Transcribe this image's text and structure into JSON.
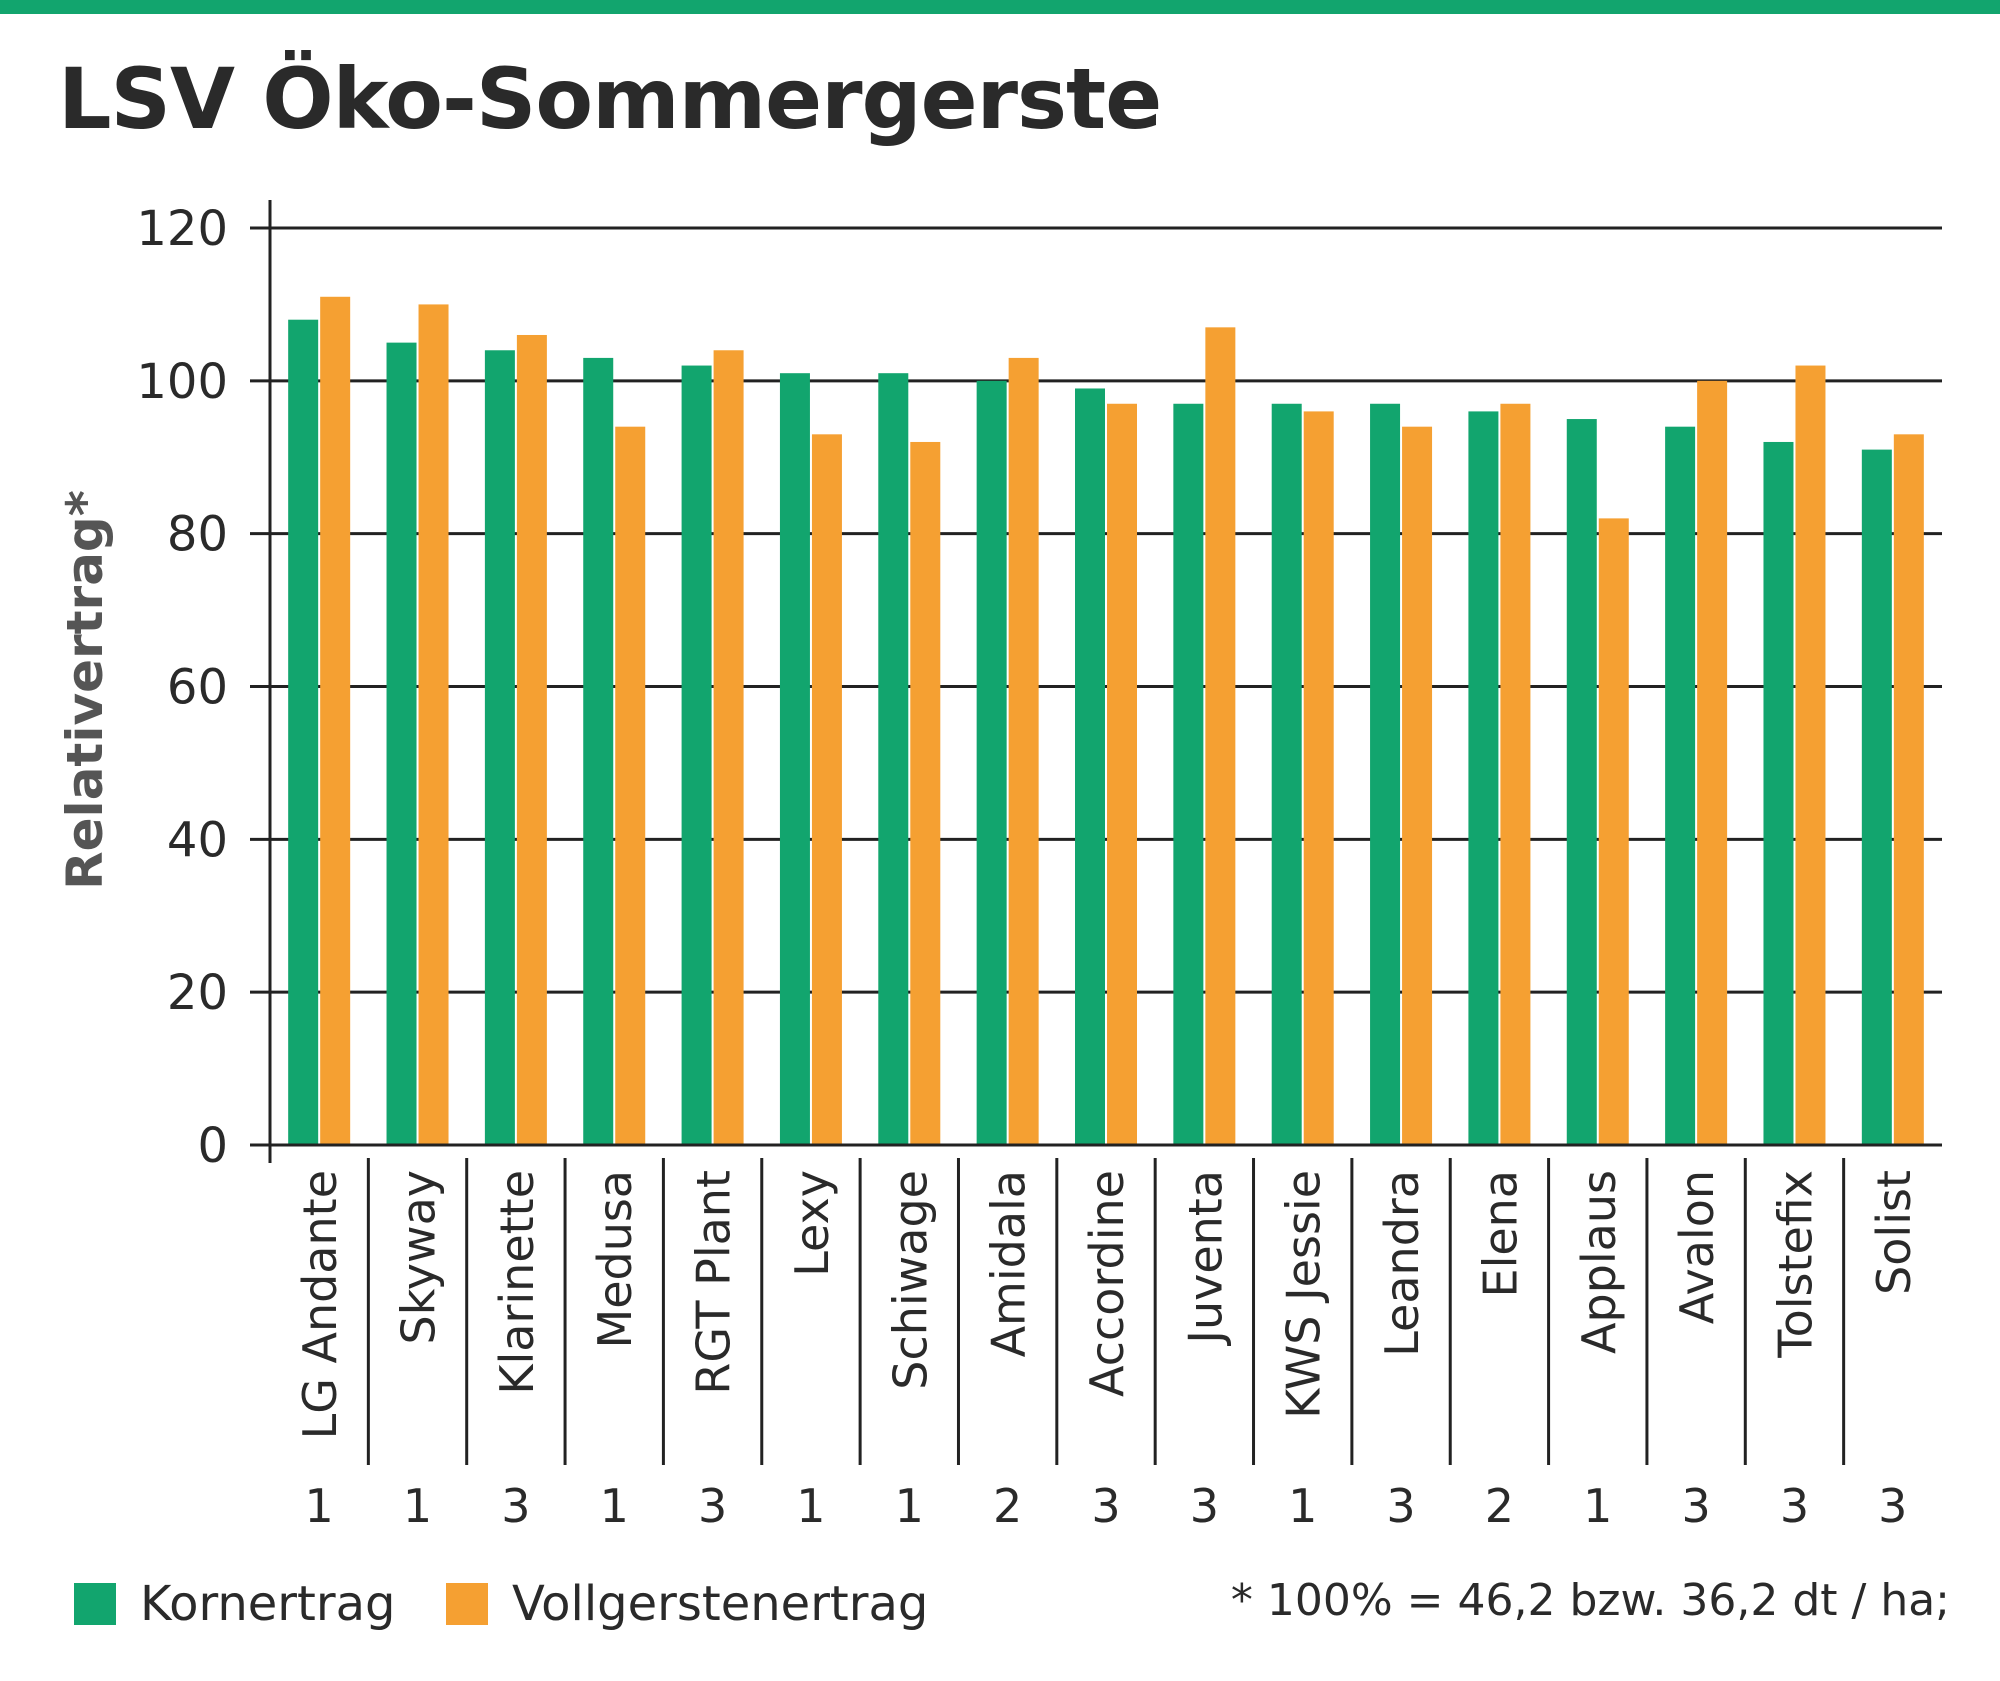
{
  "title": "LSV Öko-Sommergerste",
  "colors": {
    "accent": "#12a56e",
    "korn": "#12a56e",
    "voll": "#f5a032",
    "axis": "#222222"
  },
  "legend": {
    "korn_label": "Kornertrag",
    "voll_label": "Vollgerstenertrag"
  },
  "footnote": "* 100% = 46,2 bzw. 36,2 dt / ha;",
  "chart_data": {
    "type": "bar",
    "ylabel": "Relativertrag*",
    "ylim": [
      0,
      120
    ],
    "yticks": [
      0,
      20,
      40,
      60,
      80,
      100,
      120
    ],
    "grid": true,
    "categories": [
      "LG Andante",
      "Skyway",
      "Klarinette",
      "Medusa",
      "RGT Plant",
      "Lexy",
      "Schiwage",
      "Amidala",
      "Accordine",
      "Juventa",
      "KWS Jessie",
      "Leandra",
      "Elena",
      "Applaus",
      "Avalon",
      "Tolstefix",
      "Solist"
    ],
    "sub_labels": [
      "1",
      "1",
      "3",
      "1",
      "3",
      "1",
      "1",
      "2",
      "3",
      "3",
      "1",
      "3",
      "2",
      "1",
      "3",
      "3",
      "3"
    ],
    "series": [
      {
        "name": "Kornertrag",
        "values": [
          108,
          105,
          104,
          103,
          102,
          101,
          101,
          100,
          99,
          97,
          97,
          97,
          96,
          95,
          94,
          92,
          91
        ]
      },
      {
        "name": "Vollgerstenertrag",
        "values": [
          111,
          110,
          106,
          94,
          104,
          93,
          92,
          103,
          97,
          107,
          96,
          94,
          97,
          82,
          100,
          102,
          93
        ]
      }
    ],
    "legend_position": "bottom-left"
  }
}
